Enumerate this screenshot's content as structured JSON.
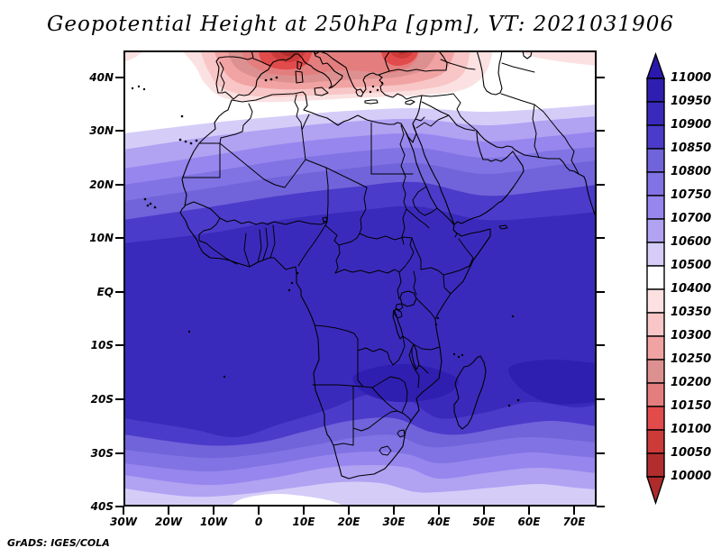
{
  "title": "Geopotential Height at 250hPa [gpm], VT: 2021031906",
  "credit": "GrADS: IGES/COLA",
  "axes": {
    "lat_ticks": [
      "40N",
      "30N",
      "20N",
      "10N",
      "EQ",
      "10S",
      "20S",
      "30S",
      "40S"
    ],
    "lon_ticks": [
      "30W",
      "20W",
      "10W",
      "0",
      "10E",
      "20E",
      "30E",
      "40E",
      "50E",
      "60E",
      "70E"
    ]
  },
  "colorbar": {
    "labels": [
      "11000",
      "10950",
      "10900",
      "10850",
      "10800",
      "10750",
      "10700",
      "10600",
      "10500",
      "10400",
      "10350",
      "10300",
      "10250",
      "10200",
      "10150",
      "10100",
      "10050",
      "10000"
    ],
    "cell_colors": [
      "#2f1fb0",
      "#3a2abc",
      "#4b3bca",
      "#7163da",
      "#8273e4",
      "#9786ee",
      "#b1a2f2",
      "#d5cdf8",
      "#ffffff",
      "#fbe1e1",
      "#f8c6c6",
      "#f1a3a3",
      "#dd9090",
      "#e47e7e",
      "#e24b4b",
      "#cc3a3a",
      "#b22e2e"
    ],
    "arrow_top_color": "#2a19ac",
    "arrow_bottom_color": "#af2b2b"
  },
  "chart_data": {
    "type": "heatmap",
    "subtype": "filled-contour-map",
    "title": "Geopotential Height at 250hPa [gpm], VT: 2021031906",
    "variable": "Geopotential Height",
    "pressure_level_hPa": 250,
    "units": "gpm",
    "valid_time": "2021031906",
    "region": {
      "lon_range": [
        "30W",
        "75E"
      ],
      "lat_range": [
        "40S",
        "45N"
      ]
    },
    "lon_tick_values": [
      -30,
      -20,
      -10,
      0,
      10,
      20,
      30,
      40,
      50,
      60,
      70
    ],
    "lat_tick_values": [
      40,
      30,
      20,
      10,
      0,
      -10,
      -20,
      -30,
      -40
    ],
    "contour_levels": [
      10000,
      10050,
      10100,
      10150,
      10200,
      10250,
      10300,
      10350,
      10400,
      10500,
      10600,
      10700,
      10750,
      10800,
      10850,
      10900,
      10950,
      11000
    ],
    "palette": [
      {
        "range": "10950-11000",
        "color": "#2f1fb0"
      },
      {
        "range": "10900-10950",
        "color": "#3a2abc"
      },
      {
        "range": "10850-10900",
        "color": "#4b3bca"
      },
      {
        "range": "10800-10850",
        "color": "#7163da"
      },
      {
        "range": "10750-10800",
        "color": "#8273e4"
      },
      {
        "range": "10700-10750",
        "color": "#9786ee"
      },
      {
        "range": "10600-10700",
        "color": "#b1a2f2"
      },
      {
        "range": "10500-10600",
        "color": "#d5cdf8"
      },
      {
        "range": "10400-10500",
        "color": "#ffffff"
      },
      {
        "range": "10350-10400",
        "color": "#fbe1e1"
      },
      {
        "range": "10300-10350",
        "color": "#f8c6c6"
      },
      {
        "range": "10250-10300",
        "color": "#f1a3a3"
      },
      {
        "range": "10200-10250",
        "color": "#dd9090"
      },
      {
        "range": "10150-10200",
        "color": "#e47e7e"
      },
      {
        "range": "10100-10150",
        "color": "#e24b4b"
      },
      {
        "range": "10050-10100",
        "color": "#cc3a3a"
      },
      {
        "range": "10000-10050",
        "color": "#b22e2e"
      }
    ],
    "legend_position": "right",
    "features": [
      {
        "name": "low-height trough (red)",
        "location": "Mediterranean: Iberia, southern Europe, Turkey, Black Sea",
        "value": "below 10000-10200 gpm at cores near top edge"
      },
      {
        "name": "white transition band",
        "location": "about 30N-35N across North Africa and Middle East",
        "value": "10400-10500 gpm"
      },
      {
        "name": "high-height tropical belt (dark blue)",
        "location": "about 15N to 20S over central/southern Africa and Indian Ocean",
        "value": "10900-10950 gpm"
      },
      {
        "name": "maximum cores",
        "location": "Zambia/Zimbabwe region and NE of Madagascar",
        "value": "10950-11000 gpm"
      },
      {
        "name": "southern lightening",
        "location": "south of 25S toward 40S",
        "value": "decreasing to about 10400-10600 gpm near 40S"
      }
    ],
    "zonal_profile_estimate_gpm_by_lat": [
      [
        45,
        10100
      ],
      [
        40,
        10300
      ],
      [
        35,
        10450
      ],
      [
        30,
        10600
      ],
      [
        25,
        10750
      ],
      [
        20,
        10850
      ],
      [
        15,
        10890
      ],
      [
        10,
        10920
      ],
      [
        0,
        10930
      ],
      [
        -10,
        10935
      ],
      [
        -15,
        10955
      ],
      [
        -20,
        10920
      ],
      [
        -25,
        10870
      ],
      [
        -30,
        10800
      ],
      [
        -35,
        10690
      ],
      [
        -40,
        10550
      ]
    ],
    "grid": false
  }
}
